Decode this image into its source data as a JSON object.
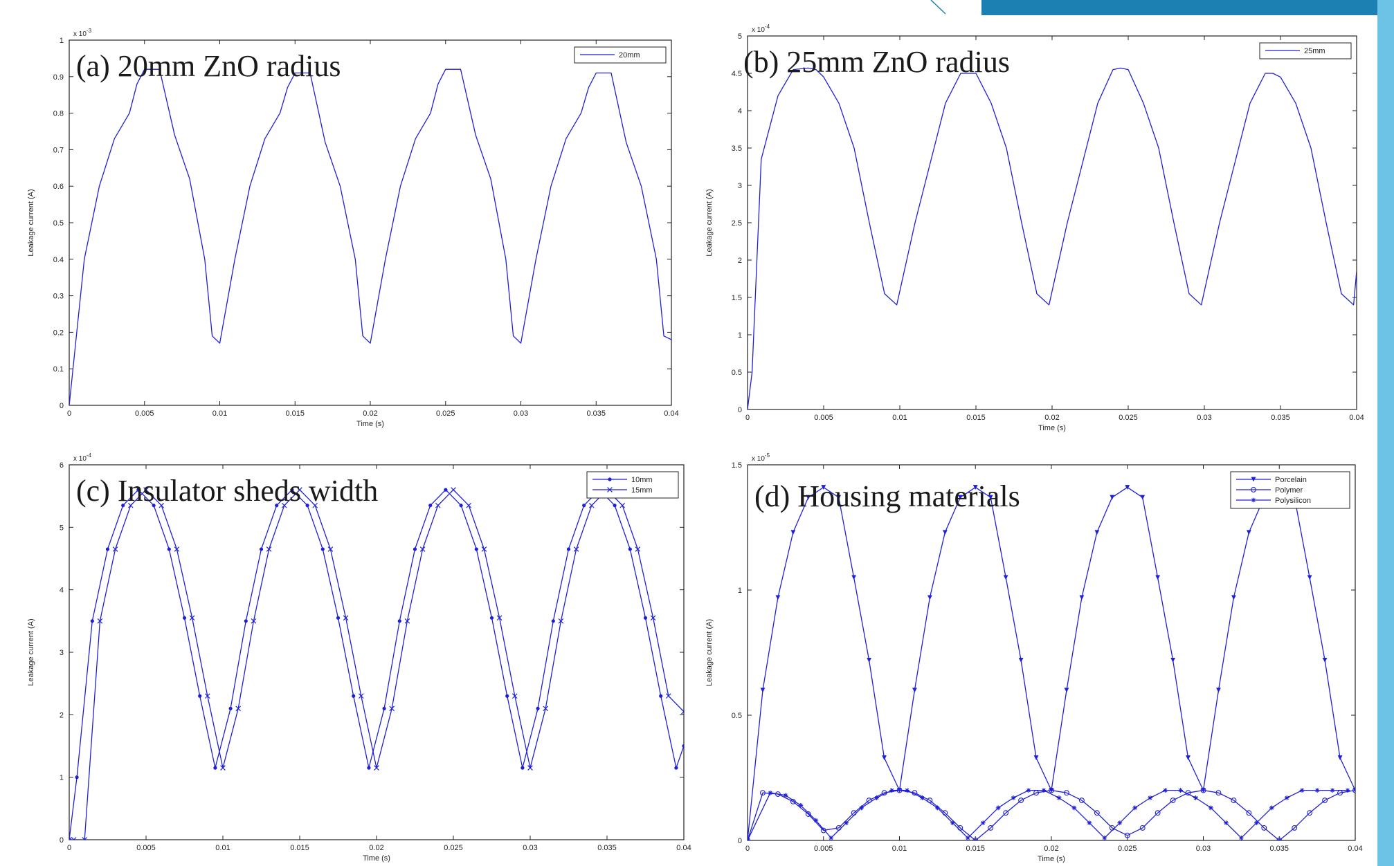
{
  "colors": {
    "line": "#1f1fd6",
    "axis": "#222222",
    "accent_dark": "#1c80b3",
    "accent_light": "#6cc3e6"
  },
  "chart_data": [
    {
      "type": "line",
      "title": "(a) 20mm ZnO radius",
      "xlabel": "Time (s)",
      "ylabel": "Leakage current (A)",
      "y_exponent": "x 10",
      "y_exponent_power": "-3",
      "xlim": [
        0,
        0.04
      ],
      "ylim": [
        0,
        1
      ],
      "xticks": [
        0,
        0.005,
        0.01,
        0.015,
        0.02,
        0.025,
        0.03,
        0.035,
        0.04
      ],
      "xtick_labels": [
        "0",
        "0.005",
        "0.01",
        "0.015",
        "0.02",
        "0.025",
        "0.03",
        "0.035",
        "0.04"
      ],
      "yticks": [
        0,
        0.1,
        0.2,
        0.3,
        0.4,
        0.5,
        0.6,
        0.7,
        0.8,
        0.9,
        1
      ],
      "ytick_labels": [
        "0",
        "0.1",
        "0.2",
        "0.3",
        "0.4",
        "0.5",
        "0.6",
        "0.7",
        "0.8",
        "0.9",
        "1"
      ],
      "legend_position": "top-right",
      "series": [
        {
          "name": "20mm",
          "marker": "none",
          "x": [
            0,
            0.001,
            0.002,
            0.003,
            0.004,
            0.0045,
            0.005,
            0.0055,
            0.006,
            0.007,
            0.008,
            0.009,
            0.0095,
            0.01,
            0.011,
            0.012,
            0.013,
            0.014,
            0.0145,
            0.015,
            0.0155,
            0.016,
            0.017,
            0.018,
            0.019,
            0.0195,
            0.02,
            0.021,
            0.022,
            0.023,
            0.024,
            0.0245,
            0.025,
            0.0255,
            0.026,
            0.027,
            0.028,
            0.029,
            0.0295,
            0.03,
            0.031,
            0.032,
            0.033,
            0.034,
            0.0345,
            0.035,
            0.0355,
            0.036,
            0.037,
            0.038,
            0.039,
            0.0395,
            0.04
          ],
          "y": [
            0,
            0.4,
            0.6,
            0.73,
            0.8,
            0.88,
            0.92,
            0.92,
            0.92,
            0.74,
            0.62,
            0.4,
            0.19,
            0.17,
            0.4,
            0.6,
            0.73,
            0.8,
            0.87,
            0.91,
            0.91,
            0.91,
            0.72,
            0.6,
            0.4,
            0.19,
            0.17,
            0.4,
            0.6,
            0.73,
            0.8,
            0.88,
            0.92,
            0.92,
            0.92,
            0.74,
            0.62,
            0.4,
            0.19,
            0.17,
            0.4,
            0.6,
            0.73,
            0.8,
            0.87,
            0.91,
            0.91,
            0.91,
            0.72,
            0.6,
            0.4,
            0.19,
            0.18
          ]
        }
      ]
    },
    {
      "type": "line",
      "title": "(b) 25mm ZnO radius",
      "xlabel": "Time (s)",
      "ylabel": "Leakage current (A)",
      "y_exponent": "x 10",
      "y_exponent_power": "-4",
      "xlim": [
        0,
        0.04
      ],
      "ylim": [
        0,
        5
      ],
      "xticks": [
        0,
        0.005,
        0.01,
        0.015,
        0.02,
        0.025,
        0.03,
        0.035,
        0.04
      ],
      "xtick_labels": [
        "0",
        "0.005",
        "0.01",
        "0.015",
        "0.02",
        "0.025",
        "0.03",
        "0.035",
        "0.04"
      ],
      "yticks": [
        0,
        0.5,
        1,
        1.5,
        2,
        2.5,
        3,
        3.5,
        4,
        4.5,
        5
      ],
      "ytick_labels": [
        "0",
        "0.5",
        "1",
        "1.5",
        "2",
        "2.5",
        "3",
        "3.5",
        "4",
        "4.5",
        "5"
      ],
      "legend_position": "top-right",
      "series": [
        {
          "name": "25mm",
          "marker": "none",
          "x": [
            0,
            0.0003,
            0.0009,
            0.002,
            0.003,
            0.004,
            0.0045,
            0.005,
            0.006,
            0.007,
            0.008,
            0.009,
            0.0098,
            0.011,
            0.012,
            0.013,
            0.014,
            0.0145,
            0.015,
            0.016,
            0.017,
            0.018,
            0.019,
            0.0198,
            0.021,
            0.022,
            0.023,
            0.024,
            0.0245,
            0.025,
            0.026,
            0.027,
            0.028,
            0.029,
            0.0298,
            0.031,
            0.032,
            0.033,
            0.034,
            0.0345,
            0.035,
            0.036,
            0.037,
            0.038,
            0.039,
            0.0398,
            0.04
          ],
          "y": [
            0,
            0.5,
            3.35,
            4.2,
            4.55,
            4.57,
            4.55,
            4.45,
            4.1,
            3.5,
            2.5,
            1.55,
            1.4,
            2.5,
            3.3,
            4.1,
            4.5,
            4.5,
            4.5,
            4.1,
            3.5,
            2.5,
            1.55,
            1.4,
            2.5,
            3.3,
            4.1,
            4.55,
            4.57,
            4.55,
            4.1,
            3.5,
            2.5,
            1.55,
            1.4,
            2.5,
            3.3,
            4.1,
            4.5,
            4.5,
            4.45,
            4.1,
            3.5,
            2.5,
            1.55,
            1.4,
            1.85
          ]
        }
      ]
    },
    {
      "type": "line",
      "title": "(c) Insulator sheds width",
      "xlabel": "Time (s)",
      "ylabel": "Leakage current (A)",
      "y_exponent": "x 10",
      "y_exponent_power": "-4",
      "xlim": [
        0,
        0.04
      ],
      "ylim": [
        0,
        6
      ],
      "xticks": [
        0,
        0.005,
        0.01,
        0.015,
        0.02,
        0.025,
        0.03,
        0.035,
        0.04
      ],
      "xtick_labels": [
        "0",
        "0.005",
        "0.01",
        "0.015",
        "0.02",
        "0.025",
        "0.03",
        "0.035",
        "0.04"
      ],
      "yticks": [
        0,
        1,
        2,
        3,
        4,
        5,
        6
      ],
      "ytick_labels": [
        "0",
        "1",
        "2",
        "3",
        "4",
        "5",
        "6"
      ],
      "legend_position": "top-right",
      "series": [
        {
          "name": "10mm",
          "marker": "dot",
          "x": [
            0,
            0.0005,
            0.0015,
            0.0025,
            0.0035,
            0.0045,
            0.0055,
            0.0065,
            0.0075,
            0.0085,
            0.0095,
            0.0105,
            0.0115,
            0.0125,
            0.0135,
            0.0145,
            0.0155,
            0.0165,
            0.0175,
            0.0185,
            0.0195,
            0.0205,
            0.0215,
            0.0225,
            0.0235,
            0.0245,
            0.0255,
            0.0265,
            0.0275,
            0.0285,
            0.0295,
            0.0305,
            0.0315,
            0.0325,
            0.0335,
            0.0345,
            0.0355,
            0.0365,
            0.0375,
            0.0385,
            0.0395,
            0.04
          ],
          "y": [
            0,
            1.0,
            3.5,
            4.65,
            5.35,
            5.6,
            5.35,
            4.65,
            3.55,
            2.3,
            1.15,
            2.1,
            3.5,
            4.65,
            5.35,
            5.6,
            5.35,
            4.65,
            3.55,
            2.3,
            1.15,
            2.1,
            3.5,
            4.65,
            5.35,
            5.6,
            5.35,
            4.65,
            3.55,
            2.3,
            1.15,
            2.1,
            3.5,
            4.65,
            5.35,
            5.6,
            5.35,
            4.65,
            3.55,
            2.3,
            1.15,
            1.5
          ]
        },
        {
          "name": "15mm",
          "marker": "x",
          "x": [
            0,
            0.0003,
            0.001,
            0.002,
            0.003,
            0.004,
            0.005,
            0.006,
            0.007,
            0.008,
            0.009,
            0.01,
            0.011,
            0.012,
            0.013,
            0.014,
            0.015,
            0.016,
            0.017,
            0.018,
            0.019,
            0.02,
            0.021,
            0.022,
            0.023,
            0.024,
            0.025,
            0.026,
            0.027,
            0.028,
            0.029,
            0.03,
            0.031,
            0.032,
            0.033,
            0.034,
            0.035,
            0.036,
            0.037,
            0.038,
            0.039,
            0.04
          ],
          "y": [
            0,
            0,
            0,
            3.5,
            4.65,
            5.35,
            5.6,
            5.35,
            4.65,
            3.55,
            2.3,
            1.15,
            2.1,
            3.5,
            4.65,
            5.35,
            5.6,
            5.35,
            4.65,
            3.55,
            2.3,
            1.15,
            2.1,
            3.5,
            4.65,
            5.35,
            5.6,
            5.35,
            4.65,
            3.55,
            2.3,
            1.15,
            2.1,
            3.5,
            4.65,
            5.35,
            5.6,
            5.35,
            4.65,
            3.55,
            2.3,
            2.05
          ]
        }
      ]
    },
    {
      "type": "line",
      "title": "(d) Housing materials",
      "xlabel": "Time (s)",
      "ylabel": "Leakage current (A)",
      "y_exponent": "x 10",
      "y_exponent_power": "-5",
      "xlim": [
        0,
        0.04
      ],
      "ylim": [
        0,
        1.5
      ],
      "xticks": [
        0,
        0.005,
        0.01,
        0.015,
        0.02,
        0.025,
        0.03,
        0.035,
        0.04
      ],
      "xtick_labels": [
        "0",
        "0.005",
        "0.01",
        "0.015",
        "0.02",
        "0.025",
        "0.03",
        "0.035",
        "0.04"
      ],
      "yticks": [
        0,
        0.5,
        1,
        1.5
      ],
      "ytick_labels": [
        "0",
        "0.5",
        "1",
        "1.5"
      ],
      "legend_position": "top-right",
      "series": [
        {
          "name": "Porcelain",
          "marker": "triangle",
          "x": [
            0,
            0.001,
            0.002,
            0.003,
            0.004,
            0.005,
            0.006,
            0.007,
            0.008,
            0.009,
            0.01,
            0.011,
            0.012,
            0.013,
            0.014,
            0.015,
            0.016,
            0.017,
            0.018,
            0.019,
            0.02,
            0.021,
            0.022,
            0.023,
            0.024,
            0.025,
            0.026,
            0.027,
            0.028,
            0.029,
            0.03,
            0.031,
            0.032,
            0.033,
            0.034,
            0.035,
            0.036,
            0.037,
            0.038,
            0.039,
            0.04
          ],
          "y": [
            0,
            0.6,
            0.97,
            1.23,
            1.37,
            1.41,
            1.37,
            1.05,
            0.72,
            0.33,
            0.2,
            0.6,
            0.97,
            1.23,
            1.37,
            1.41,
            1.37,
            1.05,
            0.72,
            0.33,
            0.2,
            0.6,
            0.97,
            1.23,
            1.37,
            1.41,
            1.37,
            1.05,
            0.72,
            0.33,
            0.2,
            0.6,
            0.97,
            1.23,
            1.37,
            1.41,
            1.37,
            1.05,
            0.72,
            0.33,
            0.2
          ]
        },
        {
          "name": "Polymer",
          "marker": "circle",
          "x": [
            0,
            0.001,
            0.002,
            0.003,
            0.004,
            0.005,
            0.006,
            0.007,
            0.008,
            0.009,
            0.01,
            0.011,
            0.012,
            0.013,
            0.014,
            0.015,
            0.016,
            0.017,
            0.018,
            0.019,
            0.02,
            0.021,
            0.022,
            0.023,
            0.024,
            0.025,
            0.026,
            0.027,
            0.028,
            0.029,
            0.03,
            0.031,
            0.032,
            0.033,
            0.034,
            0.035,
            0.036,
            0.037,
            0.038,
            0.039,
            0.04
          ],
          "y": [
            0,
            0.19,
            0.185,
            0.155,
            0.105,
            0.04,
            0.05,
            0.11,
            0.16,
            0.19,
            0.2,
            0.19,
            0.16,
            0.11,
            0.05,
            0.0,
            0.05,
            0.11,
            0.16,
            0.19,
            0.2,
            0.19,
            0.16,
            0.11,
            0.05,
            0.02,
            0.05,
            0.11,
            0.16,
            0.19,
            0.2,
            0.19,
            0.16,
            0.11,
            0.05,
            0.0,
            0.05,
            0.11,
            0.16,
            0.19,
            0.2
          ]
        },
        {
          "name": "Polysilicon",
          "marker": "star",
          "x": [
            0,
            0.0015,
            0.0025,
            0.0035,
            0.0045,
            0.0055,
            0.0065,
            0.0075,
            0.0085,
            0.0095,
            0.0105,
            0.0115,
            0.0125,
            0.0135,
            0.0145,
            0.0155,
            0.0165,
            0.0175,
            0.0185,
            0.0195,
            0.0205,
            0.0215,
            0.0225,
            0.0235,
            0.0245,
            0.0255,
            0.0265,
            0.0275,
            0.0285,
            0.0295,
            0.0305,
            0.0315,
            0.0325,
            0.0335,
            0.0345,
            0.0355,
            0.0365,
            0.0375,
            0.0385,
            0.0395
          ],
          "y": [
            0,
            0.19,
            0.18,
            0.14,
            0.08,
            0.01,
            0.07,
            0.13,
            0.17,
            0.2,
            0.2,
            0.17,
            0.13,
            0.07,
            0.01,
            0.07,
            0.13,
            0.17,
            0.2,
            0.2,
            0.17,
            0.13,
            0.07,
            0.01,
            0.07,
            0.13,
            0.17,
            0.2,
            0.2,
            0.17,
            0.13,
            0.07,
            0.01,
            0.07,
            0.13,
            0.17,
            0.2,
            0.2,
            0.2,
            0.2
          ]
        }
      ]
    }
  ]
}
